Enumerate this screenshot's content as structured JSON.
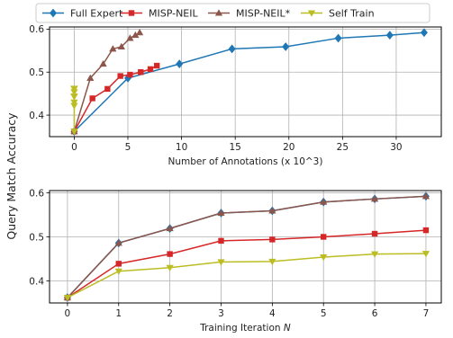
{
  "legend": {
    "placement": "top-center",
    "entries": [
      {
        "label": "Full Expert",
        "color": "#1f77b4",
        "marker": "diamond"
      },
      {
        "label": "MISP-NEIL",
        "color": "#d62728",
        "marker": "square"
      },
      {
        "label": "MISP-NEIL*",
        "color": "#8c564b",
        "marker": "triangle-up"
      },
      {
        "label": "Self Train",
        "color": "#bcbd22",
        "marker": "triangle-down"
      }
    ]
  },
  "shared_ylabel": "Query Match Accuracy",
  "chart_data": [
    {
      "type": "line",
      "xlabel": "Number of Annotations (x 10^3)",
      "ylabel": "",
      "xlim": [
        -2.3,
        34.2
      ],
      "ylim": [
        0.35,
        0.605
      ],
      "xticks": [
        0,
        5,
        10,
        15,
        20,
        25,
        30
      ],
      "yticks": [
        0.4,
        0.5,
        0.6
      ],
      "ytick_labels": [
        "0.4",
        "0.5",
        "0.6"
      ],
      "grid": true,
      "series": [
        {
          "name": "Full Expert",
          "color": "#1f77b4",
          "marker": "diamond",
          "x": [
            0,
            5,
            9.8,
            14.7,
            19.7,
            24.6,
            29.4,
            32.6
          ],
          "y": [
            0.362,
            0.486,
            0.519,
            0.554,
            0.559,
            0.579,
            0.586,
            0.592
          ]
        },
        {
          "name": "MISP-NEIL",
          "color": "#d62728",
          "marker": "square",
          "x": [
            0,
            1.7,
            3.1,
            4.3,
            5.2,
            6.2,
            7.1,
            7.7
          ],
          "y": [
            0.362,
            0.439,
            0.461,
            0.491,
            0.494,
            0.5,
            0.507,
            0.515
          ]
        },
        {
          "name": "MISP-NEIL*",
          "color": "#8c564b",
          "marker": "triangle-up",
          "x": [
            0,
            1.5,
            2.7,
            3.6,
            4.4,
            5.2,
            5.7,
            6.1
          ],
          "y": [
            0.362,
            0.486,
            0.519,
            0.554,
            0.559,
            0.579,
            0.586,
            0.592
          ]
        },
        {
          "name": "Self Train",
          "color": "#bcbd22",
          "marker": "triangle-down",
          "x": [
            0,
            0,
            0,
            0,
            0,
            0,
            0,
            0
          ],
          "y": [
            0.362,
            0.422,
            0.43,
            0.443,
            0.444,
            0.454,
            0.461,
            0.462
          ]
        }
      ]
    },
    {
      "type": "line",
      "xlabel": "Training Iteration N",
      "xlabel_text": "Training Iteration ",
      "xlabel_var": "N",
      "ylabel": "",
      "xlim": [
        -0.35,
        7.3
      ],
      "ylim": [
        0.35,
        0.605
      ],
      "xticks": [
        0,
        1,
        2,
        3,
        4,
        5,
        6,
        7
      ],
      "yticks": [
        0.4,
        0.5,
        0.6
      ],
      "ytick_labels": [
        "0.4",
        "0.5",
        "0.6"
      ],
      "grid": true,
      "series": [
        {
          "name": "Full Expert",
          "color": "#1f77b4",
          "marker": "diamond",
          "x": [
            0,
            1,
            2,
            3,
            4,
            5,
            6,
            7
          ],
          "y": [
            0.362,
            0.486,
            0.519,
            0.554,
            0.559,
            0.579,
            0.586,
            0.592
          ]
        },
        {
          "name": "MISP-NEIL",
          "color": "#d62728",
          "marker": "square",
          "x": [
            0,
            1,
            2,
            3,
            4,
            5,
            6,
            7
          ],
          "y": [
            0.362,
            0.439,
            0.461,
            0.491,
            0.494,
            0.5,
            0.507,
            0.515
          ]
        },
        {
          "name": "MISP-NEIL*",
          "color": "#8c564b",
          "marker": "triangle-up",
          "x": [
            0,
            1,
            2,
            3,
            4,
            5,
            6,
            7
          ],
          "y": [
            0.362,
            0.486,
            0.519,
            0.554,
            0.559,
            0.579,
            0.586,
            0.592
          ]
        },
        {
          "name": "Self Train",
          "color": "#bcbd22",
          "marker": "triangle-down",
          "x": [
            0,
            1,
            2,
            3,
            4,
            5,
            6,
            7
          ],
          "y": [
            0.362,
            0.422,
            0.43,
            0.443,
            0.444,
            0.454,
            0.461,
            0.462
          ]
        }
      ]
    }
  ]
}
